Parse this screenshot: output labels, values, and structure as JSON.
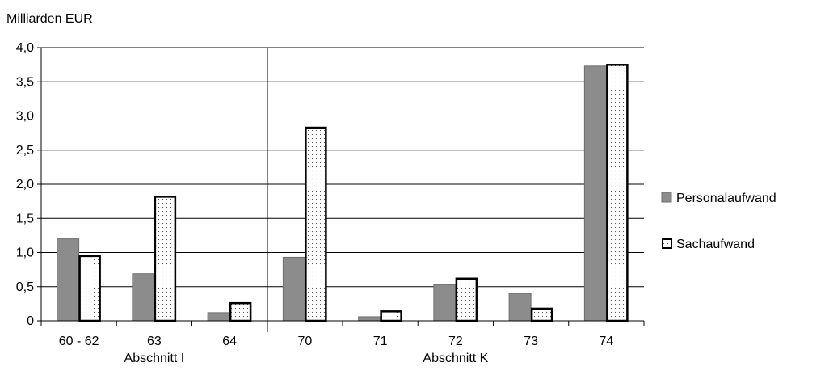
{
  "chart_data": {
    "type": "bar",
    "ylabel": "Milliarden EUR",
    "ylim": [
      0,
      4.0
    ],
    "yticks": [
      "0",
      "0,5",
      "1,0",
      "1,5",
      "2,0",
      "2,5",
      "3,0",
      "3,5",
      "4,0"
    ],
    "ytick_values": [
      0,
      0.5,
      1.0,
      1.5,
      2.0,
      2.5,
      3.0,
      3.5,
      4.0
    ],
    "categories": [
      "60 - 62",
      "63",
      "64",
      "70",
      "71",
      "72",
      "73",
      "74"
    ],
    "groups": [
      {
        "label": "Abschnitt I",
        "categories": [
          "60 - 62",
          "63",
          "64"
        ]
      },
      {
        "label": "Abschnitt K",
        "categories": [
          "70",
          "71",
          "72",
          "73",
          "74"
        ]
      }
    ],
    "series": [
      {
        "name": "Personalaufwand",
        "color": "#8c8c8c",
        "values": [
          1.2,
          0.69,
          0.12,
          0.93,
          0.06,
          0.53,
          0.4,
          3.73
        ]
      },
      {
        "name": "Sachaufwand",
        "color": "#ffffff",
        "pattern": "dotted",
        "values": [
          0.96,
          1.83,
          0.27,
          2.84,
          0.15,
          0.63,
          0.19,
          3.76
        ]
      }
    ],
    "grid": true,
    "legend_position": "right"
  }
}
